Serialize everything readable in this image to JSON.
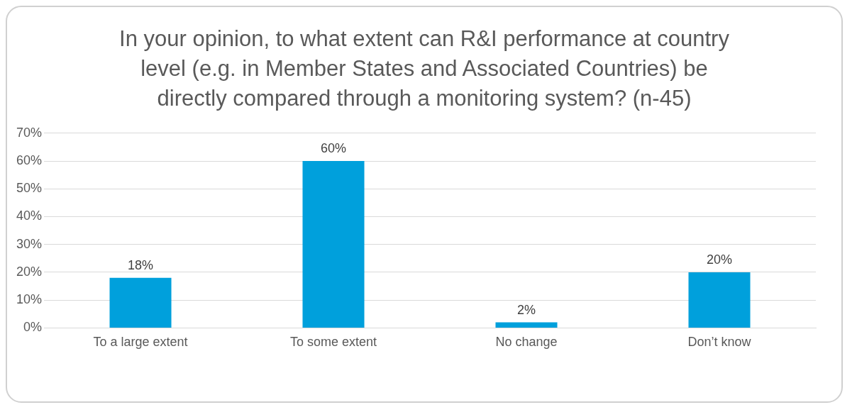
{
  "chart_data": {
    "type": "bar",
    "title": "In your opinion, to what extent can R&I performance at country level (e.g. in Member States and Associated Countries) be directly compared through a monitoring system? (n-45)",
    "categories": [
      "To a large extent",
      "To some extent",
      "No change",
      "Don’t know"
    ],
    "values": [
      18,
      60,
      2,
      20
    ],
    "value_labels": [
      "18%",
      "60%",
      "2%",
      "20%"
    ],
    "color": "#00a0dc",
    "ylim": [
      0,
      70
    ],
    "yticks": [
      {
        "value": 0,
        "label": "0%"
      },
      {
        "value": 10,
        "label": "10%"
      },
      {
        "value": 20,
        "label": "20%"
      },
      {
        "value": 30,
        "label": "30%"
      },
      {
        "value": 40,
        "label": "40%"
      },
      {
        "value": 50,
        "label": "50%"
      },
      {
        "value": 60,
        "label": "60%"
      },
      {
        "value": 70,
        "label": "70%"
      }
    ],
    "grid": "y"
  }
}
